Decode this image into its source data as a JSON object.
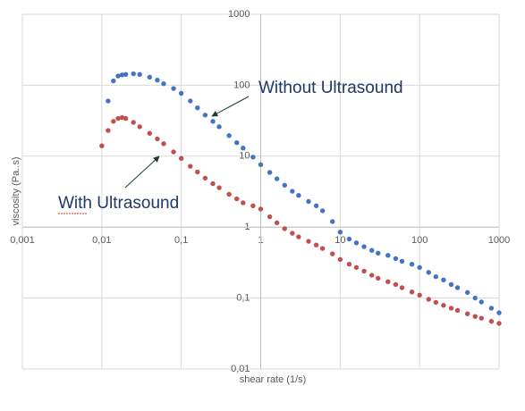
{
  "chart_data": {
    "type": "scatter",
    "log_x": true,
    "log_y": true,
    "grid": true,
    "x_label": "shear rate (1/s)",
    "y_label": "viscosity  (Pa..s)",
    "xlim": [
      0.001,
      1000
    ],
    "ylim": [
      0.01,
      1000
    ],
    "xticks": [
      {
        "value": 0.001,
        "label": "0,001"
      },
      {
        "value": 0.01,
        "label": "0,01"
      },
      {
        "value": 0.1,
        "label": "0,1"
      },
      1,
      10,
      100,
      1000
    ],
    "yticks": [
      {
        "value": 0.01,
        "label": "0,01"
      },
      {
        "value": 0.1,
        "label": "0,1"
      },
      1,
      10,
      100,
      1000
    ],
    "x": [
      0.01,
      0.012,
      0.014,
      0.016,
      0.018,
      0.02,
      0.025,
      0.03,
      0.04,
      0.05,
      0.06,
      0.08,
      0.1,
      0.13,
      0.16,
      0.2,
      0.25,
      0.3,
      0.4,
      0.5,
      0.6,
      0.8,
      1,
      1.3,
      1.6,
      2,
      2.5,
      3,
      4,
      5,
      6,
      8,
      10,
      13,
      16,
      20,
      25,
      30,
      40,
      50,
      60,
      80,
      100,
      130,
      160,
      200,
      250,
      300,
      400,
      500,
      600,
      800,
      1000
    ],
    "series": [
      {
        "name": "Without Ultrasound",
        "color": "#4472c4",
        "values": [
          null,
          60,
          115,
          135,
          140,
          142,
          145,
          142,
          130,
          118,
          105,
          90,
          77,
          60,
          48,
          38,
          31,
          26,
          19.5,
          15.5,
          13,
          9.7,
          7.6,
          5.9,
          4.8,
          3.9,
          3.2,
          2.8,
          2.3,
          2.0,
          1.7,
          1.2,
          0.85,
          0.68,
          0.6,
          0.53,
          0.47,
          0.43,
          0.4,
          0.36,
          0.33,
          0.3,
          0.27,
          0.23,
          0.2,
          0.18,
          0.155,
          0.14,
          0.12,
          0.1,
          0.088,
          0.072,
          0.062
        ]
      },
      {
        "name": "With Ultrasound",
        "color": "#c0504d",
        "values": [
          14,
          23,
          31,
          34,
          35,
          34,
          30,
          26,
          21,
          17.5,
          15,
          11.5,
          9.3,
          7.2,
          6,
          4.9,
          4.1,
          3.6,
          2.9,
          2.5,
          2.2,
          2.0,
          1.8,
          1.4,
          1.15,
          0.95,
          0.82,
          0.73,
          0.63,
          0.56,
          0.5,
          0.42,
          0.35,
          0.3,
          0.27,
          0.24,
          0.21,
          0.19,
          0.17,
          0.155,
          0.14,
          0.122,
          0.11,
          0.096,
          0.087,
          0.079,
          0.072,
          0.067,
          0.06,
          0.055,
          0.052,
          0.047,
          0.044
        ]
      }
    ]
  }
}
